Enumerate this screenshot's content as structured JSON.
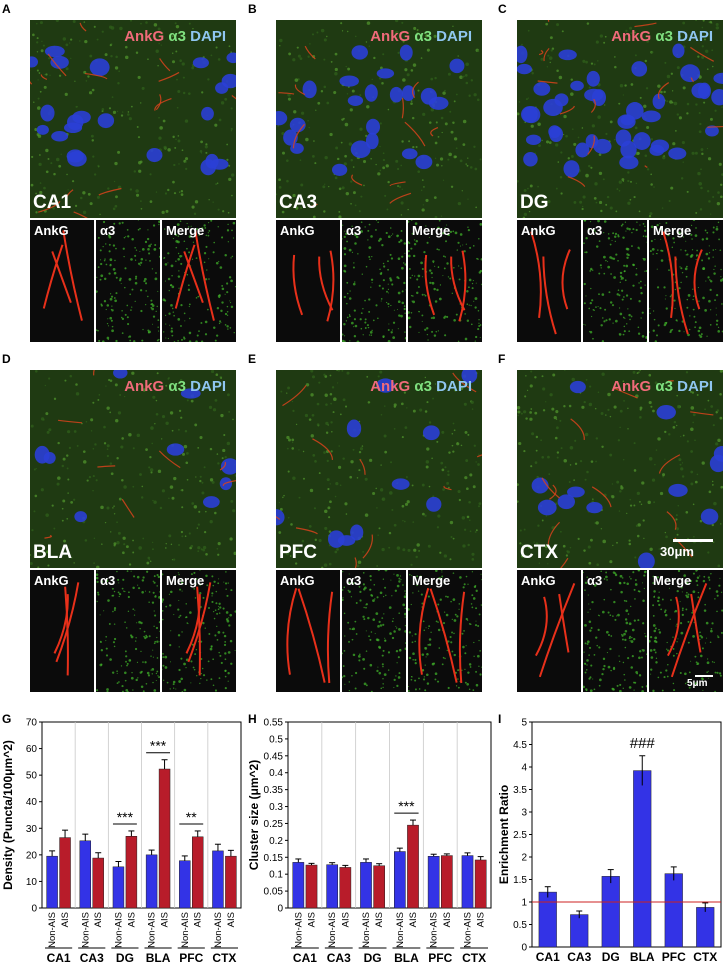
{
  "stain_labels": {
    "ankg": "AnkG",
    "a3": "α3",
    "dapi": "DAPI"
  },
  "sub_labels": {
    "ankg": "AnkG",
    "a3": "α3",
    "merge": "Merge"
  },
  "scale_bars": {
    "main": "30μm",
    "inset": "5μm"
  },
  "panels": [
    {
      "letter": "A",
      "region": "CA1"
    },
    {
      "letter": "B",
      "region": "CA3"
    },
    {
      "letter": "C",
      "region": "DG"
    },
    {
      "letter": "D",
      "region": "BLA"
    },
    {
      "letter": "E",
      "region": "PFC"
    },
    {
      "letter": "F",
      "region": "CTX"
    }
  ],
  "chart_data": [
    {
      "panel": "G",
      "type": "bar",
      "ylabel": "Density (Puncta/100μm^2)",
      "ylim": [
        0,
        70
      ],
      "yticks": [
        0,
        10,
        20,
        30,
        40,
        50,
        60,
        70
      ],
      "groups": [
        "CA1",
        "CA3",
        "DG",
        "BLA",
        "PFC",
        "CTX"
      ],
      "bar_labels": [
        "Non-AIS",
        "AIS"
      ],
      "series": [
        {
          "name": "Non-AIS",
          "color": "#3333e6",
          "values": [
            19.5,
            25.3,
            15.5,
            20.0,
            17.8,
            21.5
          ],
          "errors": [
            2.0,
            2.5,
            2.0,
            1.8,
            1.8,
            2.5
          ]
        },
        {
          "name": "AIS",
          "color": "#b81c2a",
          "values": [
            26.5,
            18.8,
            27.0,
            52.3,
            26.8,
            19.5
          ],
          "errors": [
            2.8,
            2.0,
            2.0,
            3.5,
            2.2,
            2.2
          ]
        }
      ],
      "annotations": [
        {
          "group": "DG",
          "text": "***"
        },
        {
          "group": "BLA",
          "text": "***"
        },
        {
          "group": "PFC",
          "text": "**"
        }
      ]
    },
    {
      "panel": "H",
      "type": "bar",
      "ylabel": "Cluster size (μm^2)",
      "ylim": [
        0,
        0.55
      ],
      "yticks": [
        0,
        0.05,
        0.1,
        0.15,
        0.2,
        0.25,
        0.3,
        0.35,
        0.4,
        0.45,
        0.5,
        0.55
      ],
      "groups": [
        "CA1",
        "CA3",
        "DG",
        "BLA",
        "PFC",
        "CTX"
      ],
      "bar_labels": [
        "Non-AIS",
        "AIS"
      ],
      "series": [
        {
          "name": "Non-AIS",
          "color": "#3333e6",
          "values": [
            0.135,
            0.128,
            0.135,
            0.167,
            0.153,
            0.155
          ],
          "errors": [
            0.01,
            0.006,
            0.01,
            0.01,
            0.006,
            0.008
          ]
        },
        {
          "name": "AIS",
          "color": "#b81c2a",
          "values": [
            0.127,
            0.12,
            0.125,
            0.245,
            0.155,
            0.142
          ],
          "errors": [
            0.005,
            0.006,
            0.006,
            0.015,
            0.005,
            0.01
          ]
        }
      ],
      "annotations": [
        {
          "group": "BLA",
          "text": "***"
        }
      ]
    },
    {
      "panel": "I",
      "type": "bar",
      "ylabel": "Enrichment Ratio",
      "ylim": [
        0,
        5
      ],
      "yticks": [
        0,
        0.5,
        1,
        1.5,
        2,
        2.5,
        3,
        3.5,
        4,
        4.5,
        5
      ],
      "categories": [
        "CA1",
        "CA3",
        "DG",
        "BLA",
        "PFC",
        "CTX"
      ],
      "values": [
        1.22,
        0.72,
        1.57,
        3.92,
        1.63,
        0.88
      ],
      "errors": [
        0.12,
        0.08,
        0.15,
        0.33,
        0.15,
        0.1
      ],
      "color": "#3333e6",
      "reference_line": 1,
      "annotations": [
        {
          "category": "BLA",
          "text": "###"
        }
      ]
    }
  ]
}
